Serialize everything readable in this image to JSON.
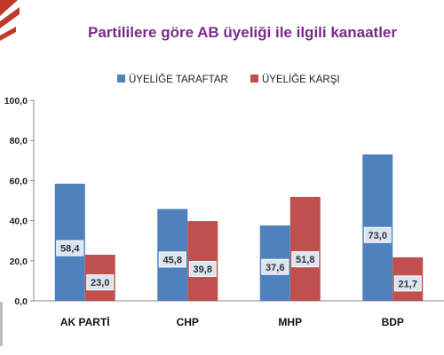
{
  "chart_data": {
    "type": "bar",
    "title": "Partililere göre AB üyeliği ile ilgili kanaatler",
    "categories": [
      "AK PARTİ",
      "CHP",
      "MHP",
      "BDP"
    ],
    "series": [
      {
        "name": "ÜYELİĞE TARAFTAR",
        "values": [
          58.4,
          45.8,
          37.6,
          73.0
        ],
        "labels": [
          "58,4",
          "45,8",
          "37,6",
          "73,0"
        ],
        "color": "#4f81bd"
      },
      {
        "name": "ÜYELİĞE KARŞI",
        "values": [
          23.0,
          39.8,
          51.8,
          21.7
        ],
        "labels": [
          "23,0",
          "39,8",
          "51,8",
          "21,7"
        ],
        "color": "#c0504d"
      }
    ],
    "ylim": [
      0,
      100
    ],
    "yticks": [
      0,
      20,
      40,
      60,
      80,
      100
    ],
    "ytick_labels": [
      "0,0",
      "20,0",
      "40,0",
      "60,0",
      "80,0",
      "100,0"
    ],
    "grid": false,
    "legend_position": "top",
    "title_color": "#7a2a8a",
    "label_box_color": "#dbe5f1"
  }
}
